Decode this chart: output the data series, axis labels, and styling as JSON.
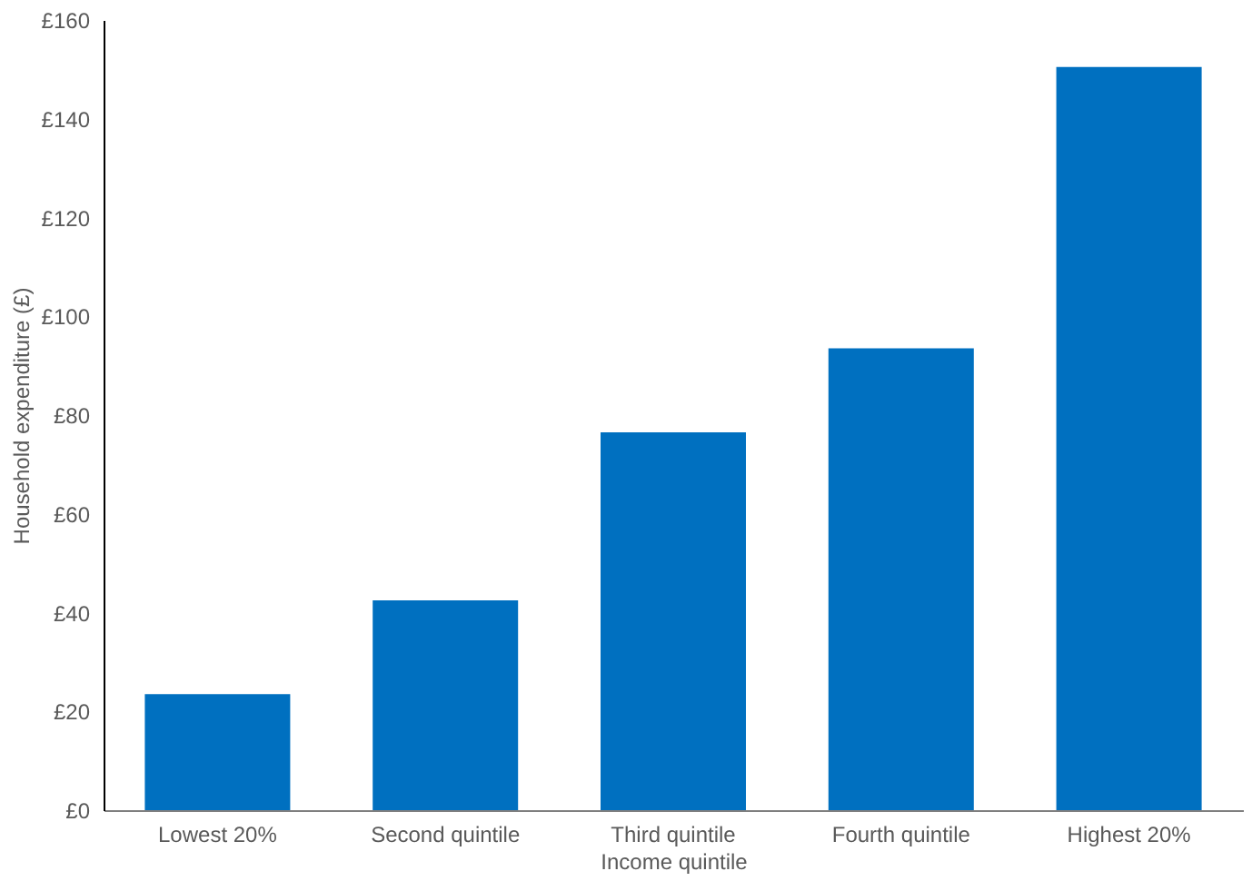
{
  "chart_data": {
    "type": "bar",
    "xlabel": "Income quintile",
    "ylabel": "Household expenditure (£)",
    "categories": [
      "Lowest 20%",
      "Second quintile",
      "Third quintile",
      "Fourth quintile",
      "Highest 20%"
    ],
    "values": [
      23.5,
      42.5,
      76.5,
      93.5,
      150.5
    ],
    "color": "#0070c0",
    "ylim": [
      0,
      160
    ],
    "yticks": [
      {
        "value": 0,
        "label": "£0"
      },
      {
        "value": 20,
        "label": "£20"
      },
      {
        "value": 40,
        "label": "£40"
      },
      {
        "value": 60,
        "label": "£60"
      },
      {
        "value": 80,
        "label": "£80"
      },
      {
        "value": 100,
        "label": "£100"
      },
      {
        "value": 120,
        "label": "£120"
      },
      {
        "value": 140,
        "label": "£140"
      },
      {
        "value": 160,
        "label": "£160"
      }
    ],
    "grid": false
  }
}
